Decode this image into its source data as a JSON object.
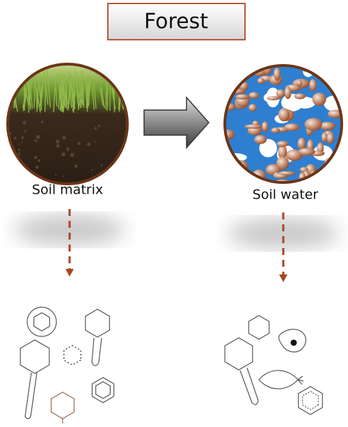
{
  "title": "Forest",
  "nodes": [
    {
      "label": "Soil matrix"
    },
    {
      "label": "Soil water"
    }
  ]
}
